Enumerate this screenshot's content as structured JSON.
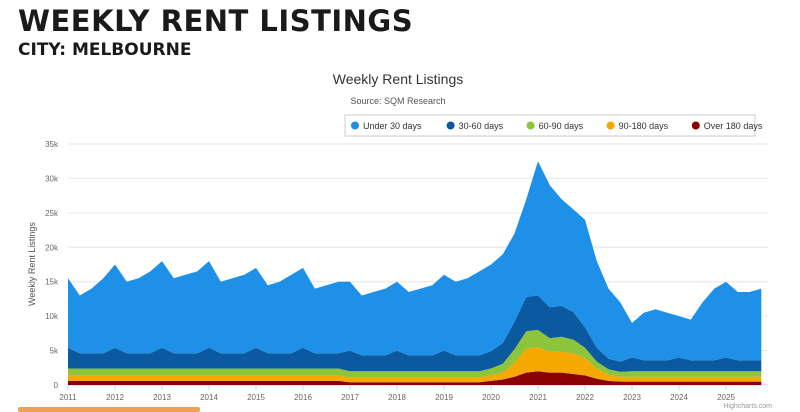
{
  "page": {
    "title": "WEEKLY RENT LISTINGS",
    "subtitle": "CITY: MELBOURNE"
  },
  "chart_data": {
    "type": "area",
    "stacked": true,
    "title": "Weekly Rent Listings",
    "subtitle": "Source: SQM Research",
    "ylabel": "Weekly Rent Listings",
    "xlabel": "",
    "credits": "Highcharts.com",
    "ylim": [
      0,
      35000
    ],
    "yticks": [
      "0",
      "5k",
      "10k",
      "15k",
      "20k",
      "25k",
      "30k",
      "35k"
    ],
    "xticks": [
      "2011",
      "2012",
      "2013",
      "2014",
      "2015",
      "2016",
      "2017",
      "2018",
      "2019",
      "2020",
      "2021",
      "2022",
      "2023",
      "2024",
      "2025"
    ],
    "grid": true,
    "legend": "top-right",
    "x_start": 2011,
    "x_step_years": 0.25,
    "series": [
      {
        "name": "Under 30 days",
        "color": "#1e90e8",
        "values": [
          10.1,
          8.4,
          9.4,
          10.9,
          12.1,
          10.4,
          10.9,
          11.9,
          12.6,
          10.9,
          11.4,
          11.9,
          12.6,
          10.4,
          10.9,
          11.4,
          11.6,
          9.9,
          10.4,
          11.4,
          11.6,
          9.4,
          9.9,
          10.4,
          10,
          8.7,
          9.2,
          9.7,
          10,
          9.2,
          9.7,
          10.2,
          11,
          10.7,
          11.2,
          12.2,
          12.6,
          12.9,
          12.8,
          14.2,
          19.5,
          17.7,
          15.5,
          14.9,
          15.6,
          12.6,
          10.2,
          8.6,
          5,
          6.9,
          7.4,
          6.9,
          6,
          5.9,
          8.4,
          10.4,
          11,
          9.9,
          9.9,
          10.4
        ]
      },
      {
        "name": "30-60 days",
        "color": "#0b5aa0",
        "values": [
          3,
          2.2,
          2.2,
          2.2,
          3,
          2.2,
          2.2,
          2.2,
          3,
          2.2,
          2.2,
          2.2,
          3,
          2.2,
          2.2,
          2.2,
          3,
          2.2,
          2.2,
          2.2,
          3,
          2.2,
          2.2,
          2.2,
          3,
          2.3,
          2.3,
          2.3,
          3,
          2.3,
          2.3,
          2.3,
          3,
          2.3,
          2.3,
          2.3,
          2.5,
          3,
          4,
          5,
          5,
          4.5,
          4.5,
          4,
          3,
          2,
          1.5,
          1.5,
          2,
          1.6,
          1.6,
          1.6,
          2,
          1.6,
          1.6,
          1.6,
          2,
          1.6,
          1.6,
          1.6
        ]
      },
      {
        "name": "60-90 days",
        "color": "#8cc43c",
        "values": [
          1,
          1,
          1,
          1,
          1,
          1,
          1,
          1,
          1,
          1,
          1,
          1,
          1,
          1,
          1,
          1,
          1,
          1,
          1,
          1,
          1,
          1,
          1,
          1,
          0.9,
          0.9,
          0.9,
          0.9,
          0.9,
          0.9,
          0.9,
          0.9,
          0.9,
          0.9,
          0.9,
          0.9,
          1,
          1.3,
          2,
          2.5,
          2.5,
          2,
          2.2,
          2,
          1.5,
          1,
          0.8,
          0.7,
          0.8,
          0.8,
          0.8,
          0.8,
          0.8,
          0.8,
          0.8,
          0.8,
          0.8,
          0.8,
          0.8,
          0.8
        ]
      },
      {
        "name": "90-180 days",
        "color": "#f5a800",
        "values": [
          0.8,
          0.8,
          0.8,
          0.8,
          0.8,
          0.8,
          0.8,
          0.8,
          0.8,
          0.8,
          0.8,
          0.8,
          0.8,
          0.8,
          0.8,
          0.8,
          0.8,
          0.8,
          0.8,
          0.8,
          0.8,
          0.8,
          0.8,
          0.8,
          0.7,
          0.7,
          0.7,
          0.7,
          0.7,
          0.7,
          0.7,
          0.7,
          0.7,
          0.7,
          0.7,
          0.7,
          0.8,
          1,
          2,
          3.5,
          3.5,
          3,
          3,
          3,
          2.5,
          1.5,
          0.9,
          0.7,
          0.7,
          0.7,
          0.7,
          0.7,
          0.7,
          0.7,
          0.7,
          0.7,
          0.7,
          0.7,
          0.7,
          0.7
        ]
      },
      {
        "name": "Over 180 days",
        "color": "#8b0000",
        "values": [
          0.6,
          0.6,
          0.6,
          0.6,
          0.6,
          0.6,
          0.6,
          0.6,
          0.6,
          0.6,
          0.6,
          0.6,
          0.6,
          0.6,
          0.6,
          0.6,
          0.6,
          0.6,
          0.6,
          0.6,
          0.6,
          0.6,
          0.6,
          0.6,
          0.4,
          0.4,
          0.4,
          0.4,
          0.4,
          0.4,
          0.4,
          0.4,
          0.4,
          0.4,
          0.4,
          0.4,
          0.6,
          0.8,
          1.2,
          1.8,
          2,
          1.8,
          1.8,
          1.6,
          1.4,
          0.9,
          0.6,
          0.5,
          0.5,
          0.5,
          0.5,
          0.5,
          0.5,
          0.5,
          0.5,
          0.5,
          0.5,
          0.5,
          0.5,
          0.5
        ]
      }
    ],
    "value_unit": "thousands"
  }
}
